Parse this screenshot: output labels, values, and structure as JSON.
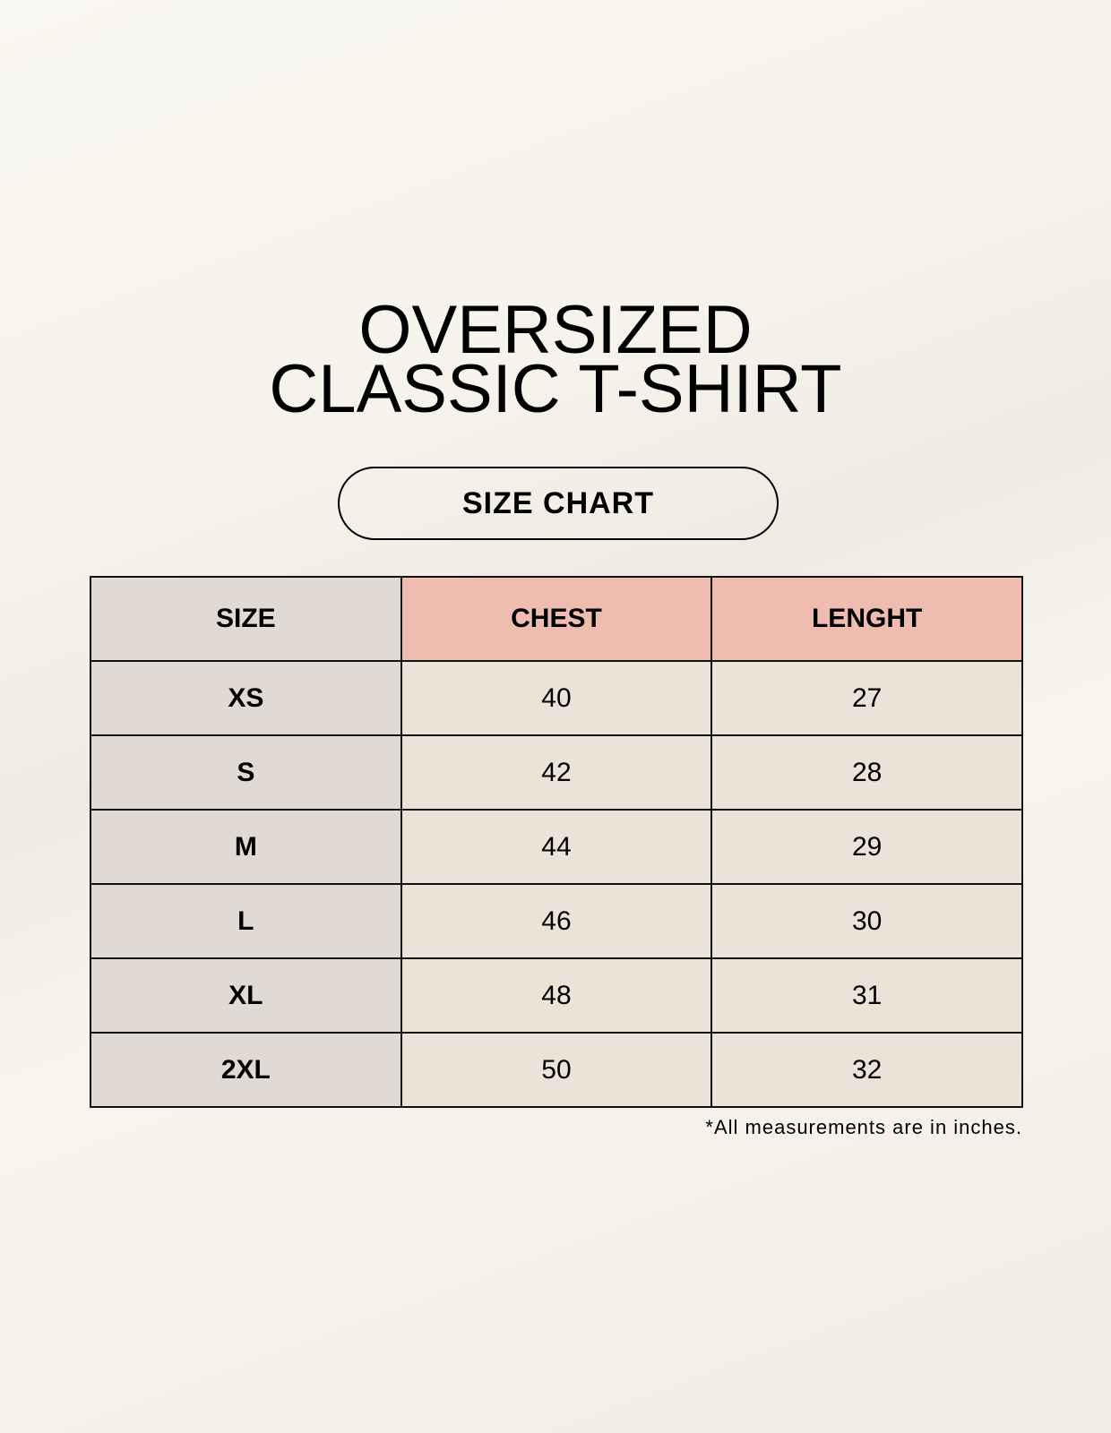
{
  "title": {
    "line1": "OVERSIZED",
    "line2": "CLASSIC T-SHIRT"
  },
  "badge": "SIZE CHART",
  "table": {
    "headers": [
      "SIZE",
      "CHEST",
      "LENGHT"
    ],
    "rows": [
      [
        "XS",
        "40",
        "27"
      ],
      [
        "S",
        "42",
        "28"
      ],
      [
        "M",
        "44",
        "29"
      ],
      [
        "L",
        "46",
        "30"
      ],
      [
        "XL",
        "48",
        "31"
      ],
      [
        "2XL",
        "50",
        "32"
      ]
    ]
  },
  "footnote": "*All measurements are in inches.",
  "colors": {
    "size_column": "#e1d9d3",
    "header_accent": "#eebdb0",
    "cell": "#ebe3d8"
  }
}
